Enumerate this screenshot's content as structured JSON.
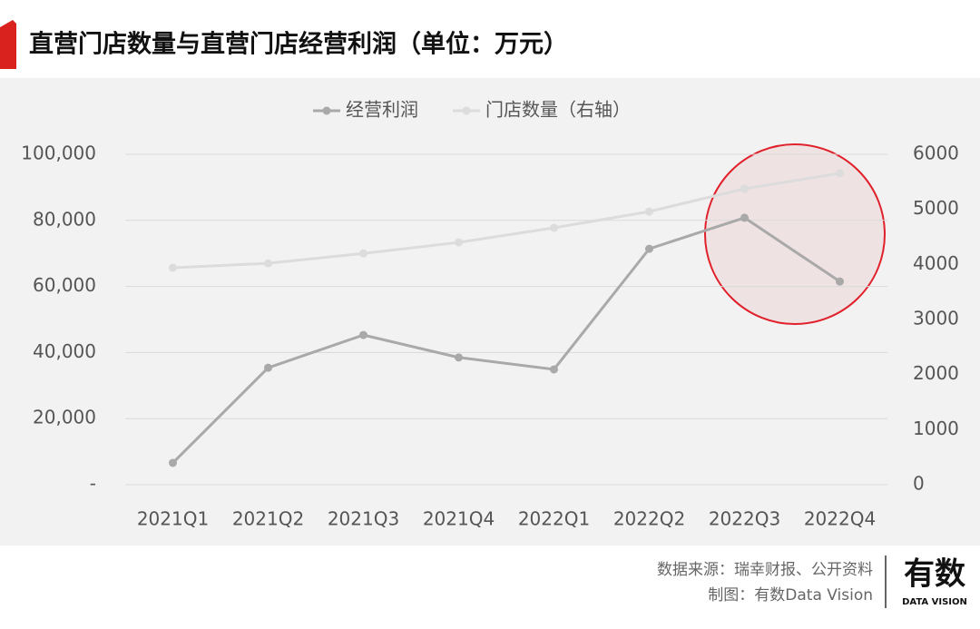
{
  "chart_data": {
    "type": "line",
    "title": "直营门店数量与直营门店经营利润（单位：万元）",
    "categories": [
      "2021Q1",
      "2021Q2",
      "2021Q3",
      "2021Q4",
      "2022Q1",
      "2022Q2",
      "2022Q3",
      "2022Q4"
    ],
    "series": [
      {
        "name": "经营利润",
        "color": "#a9a9a9",
        "values": [
          6600,
          35400,
          45300,
          38500,
          34900,
          71400,
          80800,
          61500
        ]
      },
      {
        "name": "门店数量（右轴）",
        "color": "#dcdcdc",
        "axis": "y2",
        "values": [
          3940,
          4020,
          4200,
          4400,
          4665,
          4960,
          5375,
          5655
        ]
      }
    ],
    "ylim": [
      0,
      100000
    ],
    "yticks": [
      {
        "value": 0,
        "label": "-"
      },
      {
        "value": 20000,
        "label": "20,000"
      },
      {
        "value": 40000,
        "label": "40,000"
      },
      {
        "value": 60000,
        "label": "60,000"
      },
      {
        "value": 80000,
        "label": "80,000"
      },
      {
        "value": 100000,
        "label": "100,000"
      }
    ],
    "y2lim": [
      0,
      6000
    ],
    "y2ticks": [
      0,
      1000,
      2000,
      3000,
      4000,
      5000,
      6000
    ],
    "grid": true,
    "legend": "top",
    "source": "数据来源：瑞幸财报、公开资料",
    "credit": "制图：有数Data Vision",
    "logo": "有数",
    "logo_sub": "DATA VISION"
  }
}
